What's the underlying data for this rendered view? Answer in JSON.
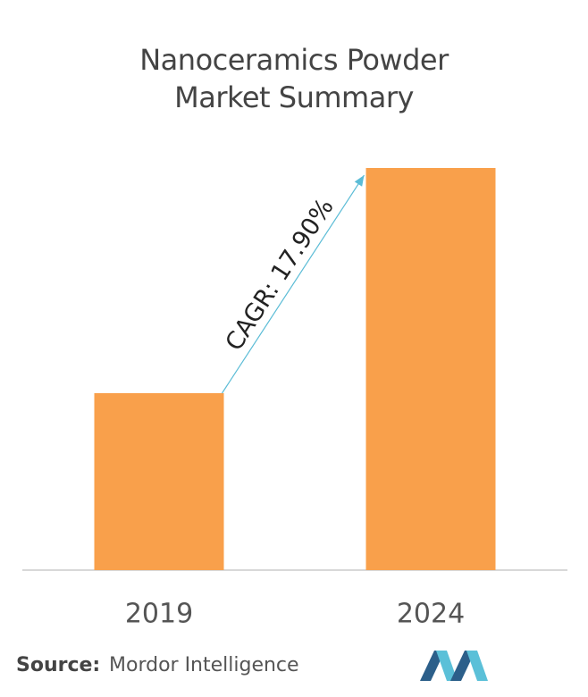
{
  "chart_data": {
    "type": "bar",
    "title": "Nanoceramics Powder Market Summary",
    "categories": [
      "2019",
      "2024"
    ],
    "values": [
      44,
      100
    ],
    "color": "#f9a04b",
    "ylim": [
      0,
      100
    ],
    "annotation": "CAGR: 17.90%",
    "source_label": "Source:",
    "source": "Mordor Intelligence"
  }
}
